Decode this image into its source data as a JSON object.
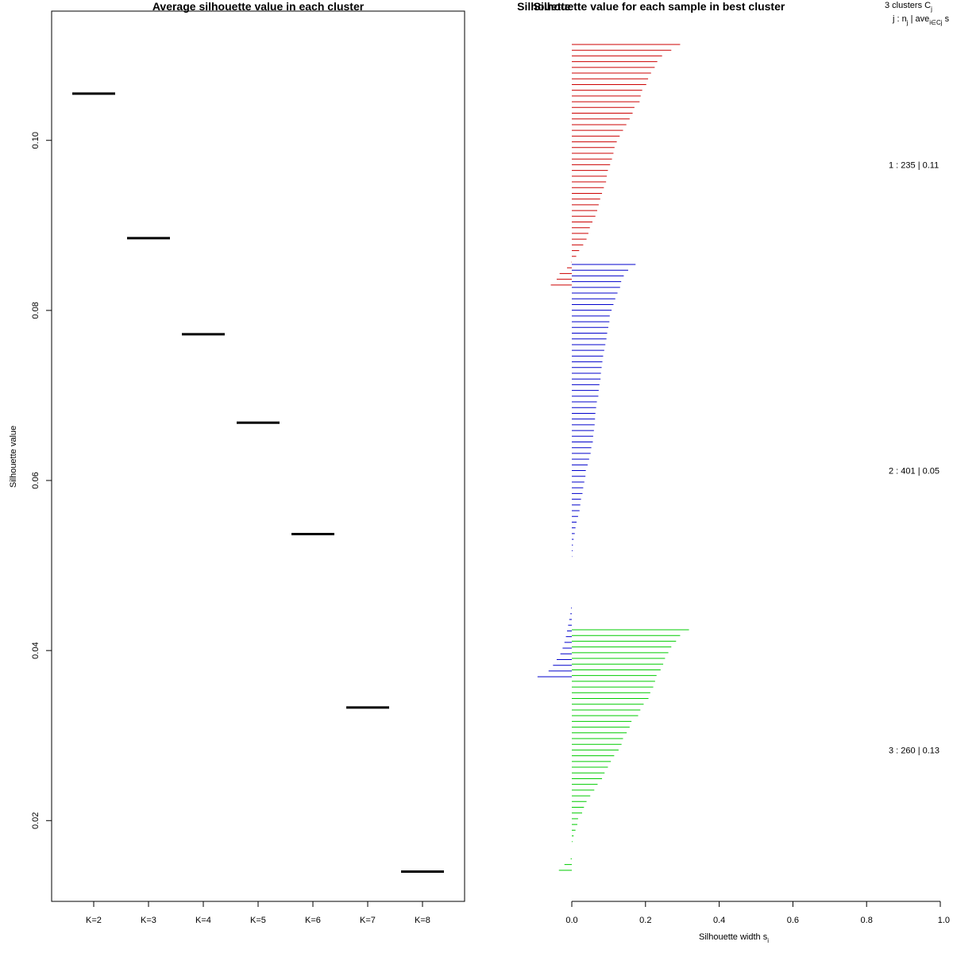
{
  "chart_data": [
    {
      "id": "avg",
      "type": "scatter",
      "marker": "horizontal-segment",
      "title": "Average silhouette value in each cluster",
      "xlabel": "",
      "ylabel": "Silhouette value",
      "categories": [
        "K=2",
        "K=3",
        "K=4",
        "K=5",
        "K=6",
        "K=7",
        "K=8"
      ],
      "values": [
        0.1055,
        0.0885,
        0.0772,
        0.0668,
        0.0537,
        0.0333,
        0.014
      ],
      "yticks": [
        0.02,
        0.04,
        0.06,
        0.08,
        0.1
      ],
      "ytick_labels": [
        "0.02",
        "0.04",
        "0.06",
        "0.08",
        "0.10"
      ],
      "ylim": [
        0.0105,
        0.1152
      ],
      "color": "#000000"
    },
    {
      "id": "sil",
      "type": "bar",
      "orientation": "horizontal",
      "title": "Silhouette value for each sample in best cluster",
      "overlay_title_fragment": "Silhouette",
      "xlabel": "Silhouette width s",
      "xlabel_sub": "i",
      "xlim": [
        0.0,
        1.0
      ],
      "xticks": [
        0.0,
        0.2,
        0.4,
        0.6,
        0.8,
        1.0
      ],
      "xtick_labels": [
        "0.0",
        "0.2",
        "0.4",
        "0.6",
        "0.8",
        "1.0"
      ],
      "header_line1": "3  clusters  C",
      "header_line1_sub": "j",
      "header_line2": "j :  n",
      "header_line2_sub": "j",
      "header_line2_rest": " | ave",
      "header_line2_sub2": "i∈Cj",
      "header_line2_end": "  s",
      "clusters": [
        {
          "label": "1 :  235  |  0.11",
          "color": "#cc0000",
          "values": [
            0.294,
            0.27,
            0.245,
            0.232,
            0.225,
            0.215,
            0.207,
            0.202,
            0.191,
            0.187,
            0.184,
            0.17,
            0.165,
            0.157,
            0.148,
            0.139,
            0.13,
            0.122,
            0.116,
            0.113,
            0.109,
            0.104,
            0.098,
            0.095,
            0.093,
            0.087,
            0.082,
            0.077,
            0.073,
            0.069,
            0.064,
            0.056,
            0.049,
            0.045,
            0.04,
            0.031,
            0.02,
            0.012,
            -0.001,
            -0.013,
            -0.033,
            -0.041,
            -0.057
          ]
        },
        {
          "label": "2 :  401  |  0.05",
          "color": "#0000cc",
          "values": [
            0.173,
            0.153,
            0.141,
            0.134,
            0.131,
            0.124,
            0.118,
            0.113,
            0.108,
            0.103,
            0.102,
            0.099,
            0.096,
            0.094,
            0.091,
            0.088,
            0.085,
            0.083,
            0.081,
            0.079,
            0.078,
            0.075,
            0.073,
            0.072,
            0.068,
            0.066,
            0.064,
            0.063,
            0.062,
            0.06,
            0.058,
            0.057,
            0.053,
            0.051,
            0.047,
            0.043,
            0.038,
            0.037,
            0.034,
            0.031,
            0.029,
            0.025,
            0.023,
            0.021,
            0.017,
            0.013,
            0.01,
            0.008,
            0.005,
            0.003,
            0.002,
            0.001,
            0.0,
            0.0,
            0.0,
            0.0,
            0.0,
            0.0,
            0.0,
            0.0,
            -0.002,
            -0.004,
            -0.007,
            -0.01,
            -0.013,
            -0.016,
            -0.02,
            -0.025,
            -0.031,
            -0.041,
            -0.051,
            -0.063,
            -0.093
          ]
        },
        {
          "label": "3 :  260  |  0.13",
          "color": "#00cc00",
          "values": [
            0.318,
            0.294,
            0.283,
            0.27,
            0.262,
            0.253,
            0.248,
            0.241,
            0.23,
            0.226,
            0.221,
            0.213,
            0.208,
            0.195,
            0.186,
            0.18,
            0.162,
            0.157,
            0.149,
            0.139,
            0.135,
            0.127,
            0.115,
            0.106,
            0.098,
            0.089,
            0.082,
            0.07,
            0.061,
            0.05,
            0.04,
            0.033,
            0.028,
            0.017,
            0.015,
            0.01,
            0.005,
            0.002,
            0.0,
            0.0,
            -0.003,
            -0.02,
            -0.035
          ]
        }
      ]
    }
  ]
}
